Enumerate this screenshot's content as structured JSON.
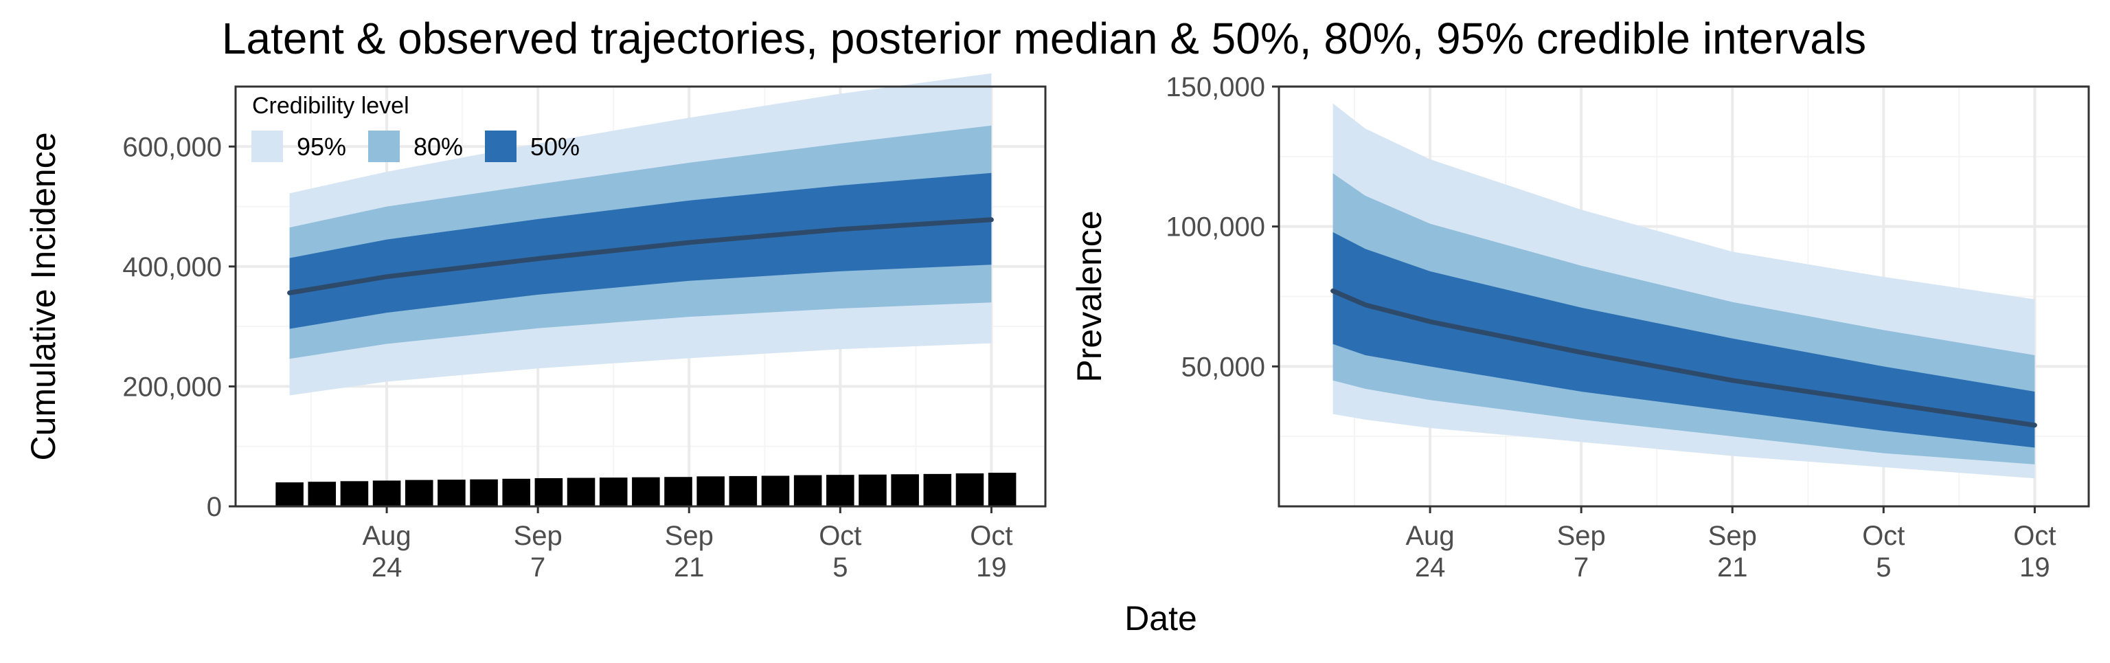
{
  "title": "Latent & observed trajectories, posterior median & 50%, 80%, 95% credible intervals",
  "xlabel": "Date",
  "legend": {
    "title": "Credibility level",
    "items": [
      {
        "label": "95%",
        "color": "#d6e5f4"
      },
      {
        "label": "80%",
        "color": "#91bedb"
      },
      {
        "label": "50%",
        "color": "#2b6fb2"
      }
    ]
  },
  "colors": {
    "median": "#2e4a6b",
    "observed": "#000000",
    "grid_major": "#ebebeb",
    "grid_minor": "#f5f5f5",
    "axis_text": "#4d4d4d"
  },
  "chart_data": [
    {
      "type": "area",
      "ylabel": "Cumulative Incidence",
      "xlim": [
        "2020-08-10",
        "2020-10-24"
      ],
      "ylim": [
        0,
        700000
      ],
      "x_ticks": [
        {
          "date": "2020-08-24",
          "line1": "Aug",
          "line2": "24"
        },
        {
          "date": "2020-09-07",
          "line1": "Sep",
          "line2": "7"
        },
        {
          "date": "2020-09-21",
          "line1": "Sep",
          "line2": "21"
        },
        {
          "date": "2020-10-05",
          "line1": "Oct",
          "line2": "5"
        },
        {
          "date": "2020-10-19",
          "line1": "Oct",
          "line2": "19"
        }
      ],
      "y_ticks": [
        {
          "value": 0,
          "label": "0"
        },
        {
          "value": 200000,
          "label": "200,000"
        },
        {
          "value": 400000,
          "label": "400,000"
        },
        {
          "value": 600000,
          "label": "600,000"
        }
      ],
      "x": [
        "2020-08-15",
        "2020-08-24",
        "2020-09-07",
        "2020-09-21",
        "2020-10-05",
        "2020-10-19"
      ],
      "median": [
        356000,
        383000,
        413000,
        440000,
        462000,
        478000
      ],
      "bands": [
        {
          "level": "95%",
          "lower": [
            185000,
            208000,
            230000,
            247000,
            262000,
            272000
          ],
          "upper": [
            522000,
            558000,
            605000,
            648000,
            688000,
            722000
          ]
        },
        {
          "level": "80%",
          "lower": [
            246000,
            271000,
            297000,
            316000,
            330000,
            340000
          ],
          "upper": [
            465000,
            500000,
            537000,
            573000,
            605000,
            635000
          ]
        },
        {
          "level": "50%",
          "lower": [
            296000,
            323000,
            353000,
            376000,
            392000,
            403000
          ],
          "upper": [
            414000,
            445000,
            479000,
            510000,
            535000,
            556000
          ]
        }
      ],
      "observed": {
        "x": [
          "2020-08-15",
          "2020-08-18",
          "2020-08-21",
          "2020-08-24",
          "2020-08-27",
          "2020-08-30",
          "2020-09-02",
          "2020-09-05",
          "2020-09-08",
          "2020-09-11",
          "2020-09-14",
          "2020-09-17",
          "2020-09-20",
          "2020-09-23",
          "2020-09-26",
          "2020-09-29",
          "2020-10-02",
          "2020-10-05",
          "2020-10-08",
          "2020-10-11",
          "2020-10-14",
          "2020-10-17",
          "2020-10-20"
        ],
        "y": [
          40000,
          41000,
          42000,
          43000,
          44000,
          44500,
          45000,
          46000,
          47000,
          47500,
          48000,
          48500,
          49000,
          50000,
          50500,
          51000,
          52000,
          52500,
          53000,
          53500,
          54000,
          55000,
          56000
        ]
      }
    },
    {
      "type": "area",
      "ylabel": "Prevalence",
      "xlim": [
        "2020-08-10",
        "2020-10-24"
      ],
      "ylim": [
        0,
        150000
      ],
      "x_ticks": [
        {
          "date": "2020-08-24",
          "line1": "Aug",
          "line2": "24"
        },
        {
          "date": "2020-09-07",
          "line1": "Sep",
          "line2": "7"
        },
        {
          "date": "2020-09-21",
          "line1": "Sep",
          "line2": "21"
        },
        {
          "date": "2020-10-05",
          "line1": "Oct",
          "line2": "5"
        },
        {
          "date": "2020-10-19",
          "line1": "Oct",
          "line2": "19"
        }
      ],
      "y_ticks": [
        {
          "value": 50000,
          "label": "50,000"
        },
        {
          "value": 100000,
          "label": "100,000"
        },
        {
          "value": 150000,
          "label": "150,000"
        }
      ],
      "x": [
        "2020-08-15",
        "2020-08-18",
        "2020-08-24",
        "2020-09-07",
        "2020-09-21",
        "2020-10-05",
        "2020-10-19"
      ],
      "median": [
        77000,
        72000,
        66000,
        55000,
        45000,
        37000,
        29000
      ],
      "bands": [
        {
          "level": "95%",
          "lower": [
            33000,
            31000,
            28000,
            23000,
            18000,
            14000,
            10000
          ],
          "upper": [
            144000,
            135000,
            124000,
            106000,
            91000,
            82000,
            74000
          ]
        },
        {
          "level": "80%",
          "lower": [
            45000,
            42000,
            38000,
            31000,
            25000,
            19000,
            15000
          ],
          "upper": [
            119000,
            111000,
            101000,
            86000,
            73000,
            63000,
            54000
          ]
        },
        {
          "level": "50%",
          "lower": [
            58000,
            54000,
            50000,
            41000,
            34000,
            27000,
            21000
          ],
          "upper": [
            98000,
            92000,
            84000,
            71000,
            60000,
            50000,
            41000
          ]
        }
      ]
    }
  ]
}
